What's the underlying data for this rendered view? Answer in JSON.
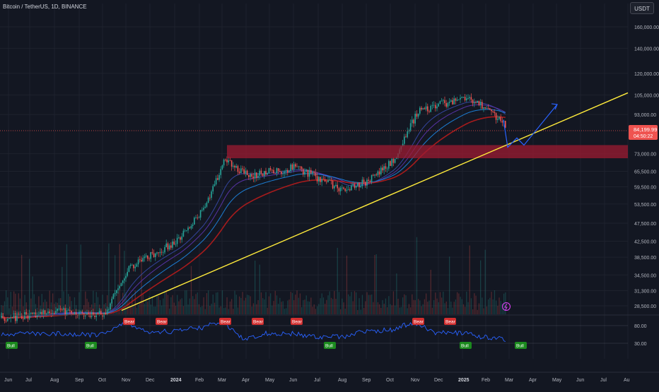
{
  "header": {
    "title": "Bitcoin / TetherUS, 1D, BINANCE",
    "currency": "USDT"
  },
  "colors": {
    "background": "#131722",
    "grid": "#1e222d",
    "up": "#26a69a",
    "down": "#ef5350",
    "ema_main": "#b71c1c",
    "trendline": "#ffeb3b",
    "projection": "#2962ff",
    "zone": "#9e1b32",
    "rsi_line": "#2962ff",
    "bull": "#1b8a1e",
    "bear": "#d32f2f"
  },
  "price_axis": {
    "scale": "log",
    "ticks": [
      "160,000.00",
      "140,000.00",
      "120,000.00",
      "105,000.00",
      "93,000.00",
      "73,000.00",
      "65,500.00",
      "59,500.00",
      "53,500.00",
      "47,500.00",
      "42,500.00",
      "38,500.00",
      "34,500.00",
      "31,300.00",
      "28,500.00"
    ],
    "tick_values": [
      160000,
      140000,
      120000,
      105000,
      93000,
      73000,
      65500,
      59500,
      53500,
      47500,
      42500,
      38500,
      34500,
      31300,
      28500
    ],
    "current_price_label": "84,199.99",
    "countdown_label": "04:50:22"
  },
  "rsi_axis": {
    "ticks": [
      "80.00",
      "30.00"
    ],
    "tick_values": [
      80,
      30
    ]
  },
  "time_axis": {
    "labels": [
      "Jun",
      "Jul",
      "Aug",
      "Sep",
      "Oct",
      "Nov",
      "Dec",
      "2024",
      "Feb",
      "Mar",
      "Apr",
      "May",
      "Jun",
      "Jul",
      "Aug",
      "Sep",
      "Oct",
      "Nov",
      "Dec",
      "2025",
      "Feb",
      "Mar",
      "Apr",
      "May",
      "Jun",
      "Jul",
      "Au"
    ],
    "year_labels": [
      "2024",
      "2025"
    ]
  },
  "chart_data": {
    "type": "candlestick",
    "title": "Bitcoin / TetherUS, 1D, BINANCE",
    "price_scale": "log",
    "price_range": [
      26000,
      175000
    ],
    "approx_close_path": [
      {
        "date": "2023-06",
        "price": 26500
      },
      {
        "date": "2023-08",
        "price": 27500
      },
      {
        "date": "2023-10",
        "price": 27200
      },
      {
        "date": "2023-11",
        "price": 36000
      },
      {
        "date": "2024-01",
        "price": 42500
      },
      {
        "date": "2024-02",
        "price": 51000
      },
      {
        "date": "2024-03",
        "price": 70000
      },
      {
        "date": "2024-04",
        "price": 64000
      },
      {
        "date": "2024-06",
        "price": 67000
      },
      {
        "date": "2024-08",
        "price": 58000
      },
      {
        "date": "2024-09",
        "price": 62000
      },
      {
        "date": "2024-10",
        "price": 70000
      },
      {
        "date": "2024-11",
        "price": 95000
      },
      {
        "date": "2024-12",
        "price": 99000
      },
      {
        "date": "2025-01",
        "price": 103000
      },
      {
        "date": "2025-02",
        "price": 96000
      },
      {
        "date": "2025-03",
        "price": 84200
      }
    ],
    "resistance_zone": [
      71000,
      77000
    ],
    "current_price": 84199.99,
    "rsi": {
      "range": [
        0,
        100
      ],
      "levels": [
        80,
        30
      ],
      "signals": [
        {
          "label": "Bull",
          "date": "2023-06"
        },
        {
          "label": "Bull",
          "date": "2023-09"
        },
        {
          "label": "Bear",
          "date": "2023-11"
        },
        {
          "label": "Bear",
          "date": "2023-12"
        },
        {
          "label": "Bear",
          "date": "2024-03"
        },
        {
          "label": "Bear",
          "date": "2024-04"
        },
        {
          "label": "Bear",
          "date": "2024-06"
        },
        {
          "label": "Bull",
          "date": "2024-07"
        },
        {
          "label": "Bear",
          "date": "2024-11"
        },
        {
          "label": "Bear",
          "date": "2024-12"
        },
        {
          "label": "Bull",
          "date": "2025-01"
        },
        {
          "label": "Bull",
          "date": "2025-03"
        }
      ]
    }
  }
}
